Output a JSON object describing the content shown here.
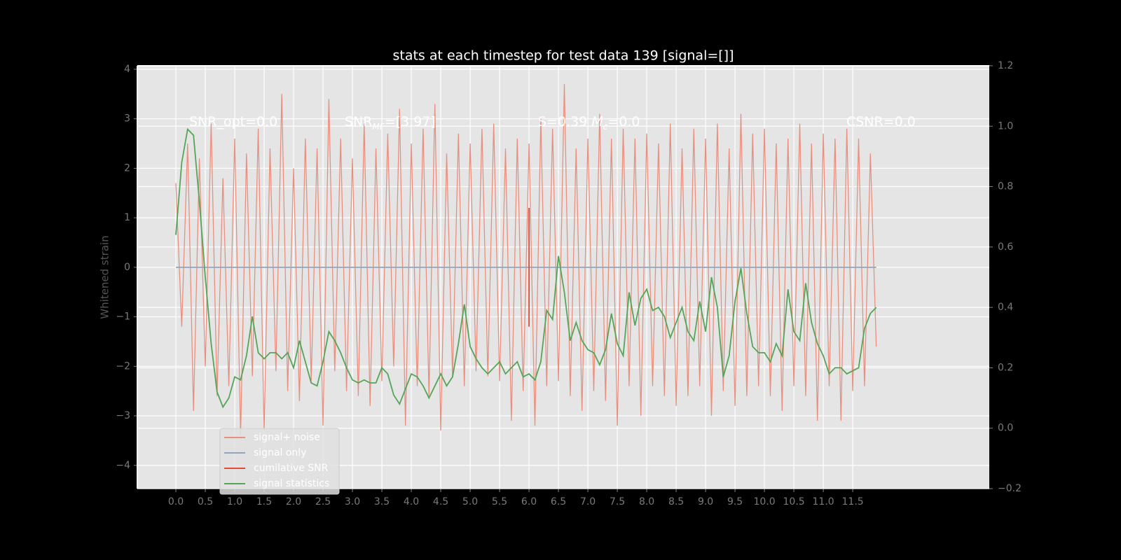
{
  "chart_data": {
    "type": "line",
    "title": "stats at each timestep for test data 139 [signal=[]]",
    "ylabel": "Whitened strain",
    "annotations": [
      [
        "SNR_opt=0.0"
      ],
      [
        "SNR",
        "MF",
        "=[3.97]"
      ],
      [
        "S=0.39   ",
        "M",
        "c",
        "=0.0"
      ],
      [
        "CSNR=0.0"
      ]
    ],
    "x": [
      0.0,
      0.1,
      0.2,
      0.3,
      0.4,
      0.5,
      0.6,
      0.7,
      0.8,
      0.9,
      1.0,
      1.1,
      1.2,
      1.3,
      1.4,
      1.5,
      1.6,
      1.7,
      1.8,
      1.9,
      2.0,
      2.1,
      2.2,
      2.3,
      2.4,
      2.5,
      2.6,
      2.7,
      2.8,
      2.9,
      3.0,
      3.1,
      3.2,
      3.3,
      3.4,
      3.5,
      3.6,
      3.7,
      3.8,
      3.9,
      4.0,
      4.1,
      4.2,
      4.3,
      4.4,
      4.5,
      4.6,
      4.7,
      4.8,
      4.9,
      5.0,
      5.1,
      5.2,
      5.3,
      5.4,
      5.5,
      5.6,
      5.7,
      5.8,
      5.9,
      6.0,
      6.1,
      6.2,
      6.3,
      6.4,
      6.5,
      6.6,
      6.7,
      6.8,
      6.9,
      7.0,
      7.1,
      7.2,
      7.3,
      7.4,
      7.5,
      7.6,
      7.7,
      7.8,
      7.9,
      8.0,
      8.1,
      8.2,
      8.3,
      8.4,
      8.5,
      8.6,
      8.7,
      8.8,
      8.9,
      9.0,
      9.1,
      9.2,
      9.3,
      9.4,
      9.5,
      9.6,
      9.7,
      9.8,
      9.9,
      10.0,
      10.1,
      10.2,
      10.3,
      10.4,
      10.5,
      10.6,
      10.7,
      10.8,
      10.9,
      11.0,
      11.1,
      11.2,
      11.3,
      11.4,
      11.5,
      11.6,
      11.7,
      11.8,
      11.9
    ],
    "series": [
      {
        "name": "signal+ noise",
        "color": "#e8907f",
        "values": [
          1.7,
          -1.2,
          2.5,
          -2.9,
          2.2,
          -2.0,
          2.9,
          -2.6,
          1.8,
          -2.4,
          2.6,
          -3.4,
          2.3,
          -2.2,
          2.8,
          -3.3,
          2.4,
          -2.1,
          3.5,
          -2.5,
          2.0,
          -2.7,
          2.6,
          -2.3,
          2.4,
          -3.2,
          3.4,
          -2.1,
          2.6,
          -2.5,
          2.2,
          -2.6,
          2.9,
          -2.8,
          2.4,
          -2.3,
          2.7,
          -2.0,
          3.2,
          -3.2,
          2.5,
          -2.4,
          2.8,
          -2.6,
          3.3,
          -3.3,
          2.3,
          -2.2,
          2.7,
          -2.4,
          2.5,
          -2.1,
          2.8,
          -2.2,
          2.9,
          -2.3,
          2.4,
          -3.1,
          2.6,
          -2.5,
          2.5,
          -3.2,
          3.0,
          -2.4,
          2.8,
          -2.3,
          3.7,
          -2.6,
          2.4,
          -2.9,
          2.6,
          -2.5,
          3.1,
          -2.7,
          2.6,
          -3.2,
          2.8,
          -2.4,
          2.6,
          -3.0,
          2.7,
          -2.4,
          2.5,
          -2.6,
          2.9,
          -2.8,
          2.4,
          -2.6,
          2.8,
          -2.4,
          2.6,
          -3.0,
          2.9,
          -2.5,
          2.4,
          -2.8,
          3.1,
          -2.6,
          2.7,
          -2.4,
          2.8,
          -2.6,
          2.5,
          -2.9,
          2.6,
          -2.4,
          2.9,
          -2.6,
          2.5,
          -3.1,
          2.7,
          -2.4,
          2.6,
          -3.1,
          2.8,
          -2.5,
          2.6,
          -2.4,
          2.3,
          -1.6
        ]
      },
      {
        "name": "signal only",
        "color": "#8fa6bd",
        "values": [
          0,
          0,
          0,
          0,
          0,
          0,
          0,
          0,
          0,
          0,
          0,
          0,
          0,
          0,
          0,
          0,
          0,
          0,
          0,
          0,
          0,
          0,
          0,
          0,
          0,
          0,
          0,
          0,
          0,
          0,
          0,
          0,
          0,
          0,
          0,
          0,
          0,
          0,
          0,
          0,
          0,
          0,
          0,
          0,
          0,
          0,
          0,
          0,
          0,
          0,
          0,
          0,
          0,
          0,
          0,
          0,
          0,
          0,
          0,
          0,
          0,
          0,
          0,
          0,
          0,
          0,
          0,
          0,
          0,
          0,
          0,
          0,
          0,
          0,
          0,
          0,
          0,
          0,
          0,
          0,
          0,
          0,
          0,
          0,
          0,
          0,
          0,
          0,
          0,
          0,
          0,
          0,
          0,
          0,
          0,
          0,
          0,
          0,
          0,
          0,
          0,
          0,
          0,
          0,
          0,
          0,
          0,
          0,
          0,
          0,
          0,
          0,
          0,
          0,
          0,
          0,
          0,
          0,
          0,
          0
        ]
      },
      {
        "name": "cumilative SNR",
        "color": "#e24a33",
        "x": [
          6.0,
          6.0
        ],
        "values": [
          1.2,
          -1.2
        ]
      },
      {
        "name": "signal statistics",
        "color": "#55a558",
        "axis": "y2",
        "values": [
          0.64,
          0.88,
          0.99,
          0.97,
          0.75,
          0.5,
          0.28,
          0.12,
          0.07,
          0.1,
          0.17,
          0.16,
          0.24,
          0.37,
          0.25,
          0.23,
          0.25,
          0.25,
          0.23,
          0.25,
          0.2,
          0.29,
          0.22,
          0.15,
          0.14,
          0.22,
          0.32,
          0.29,
          0.25,
          0.2,
          0.16,
          0.15,
          0.16,
          0.15,
          0.15,
          0.2,
          0.18,
          0.11,
          0.08,
          0.13,
          0.18,
          0.17,
          0.14,
          0.1,
          0.14,
          0.18,
          0.14,
          0.17,
          0.28,
          0.41,
          0.27,
          0.23,
          0.2,
          0.18,
          0.2,
          0.22,
          0.18,
          0.2,
          0.22,
          0.17,
          0.18,
          0.16,
          0.22,
          0.39,
          0.36,
          0.57,
          0.45,
          0.29,
          0.35,
          0.29,
          0.26,
          0.25,
          0.21,
          0.26,
          0.38,
          0.28,
          0.24,
          0.45,
          0.34,
          0.43,
          0.46,
          0.39,
          0.4,
          0.37,
          0.3,
          0.35,
          0.4,
          0.32,
          0.29,
          0.42,
          0.32,
          0.5,
          0.4,
          0.17,
          0.24,
          0.42,
          0.53,
          0.38,
          0.27,
          0.25,
          0.25,
          0.22,
          0.28,
          0.24,
          0.46,
          0.32,
          0.29,
          0.48,
          0.35,
          0.28,
          0.24,
          0.18,
          0.2,
          0.2,
          0.18,
          0.19,
          0.2,
          0.33,
          0.38,
          0.4
        ]
      }
    ],
    "xlim": [
      -0.655,
      13.82
    ],
    "xticks": [
      {
        "value": 0,
        "label": "0.0"
      },
      {
        "value": 0.5,
        "label": "0.5"
      },
      {
        "value": 1,
        "label": "1.0"
      },
      {
        "value": 1.5,
        "label": "1.5"
      },
      {
        "value": 2,
        "label": "2.0"
      },
      {
        "value": 2.5,
        "label": "2.5"
      },
      {
        "value": 3,
        "label": "3.0"
      },
      {
        "value": 3.5,
        "label": "3.5"
      },
      {
        "value": 4,
        "label": "4.0"
      },
      {
        "value": 4.5,
        "label": "4.5"
      },
      {
        "value": 5,
        "label": "5.0"
      },
      {
        "value": 5.5,
        "label": "5.5"
      },
      {
        "value": 6,
        "label": "6.0"
      },
      {
        "value": 6.5,
        "label": "6.5"
      },
      {
        "value": 7,
        "label": "7.0"
      },
      {
        "value": 7.5,
        "label": "7.5"
      },
      {
        "value": 8,
        "label": "8.0"
      },
      {
        "value": 8.5,
        "label": "8.5"
      },
      {
        "value": 9,
        "label": "9.0"
      },
      {
        "value": 9.5,
        "label": "9.5"
      },
      {
        "value": 10,
        "label": "10.0"
      },
      {
        "value": 10.5,
        "label": "10.5"
      },
      {
        "value": 11,
        "label": "11.0"
      },
      {
        "value": 11.5,
        "label": "11.5"
      }
    ],
    "ylim": [
      -4.47,
      4.07
    ],
    "yticks": [
      {
        "value": -4,
        "label": "−4"
      },
      {
        "value": -3,
        "label": "−3"
      },
      {
        "value": -2,
        "label": "−2"
      },
      {
        "value": -1,
        "label": "−1"
      },
      0,
      1,
      2,
      3,
      4
    ],
    "y2lim": [
      -0.2,
      1.2
    ],
    "y2ticks": [
      {
        "value": -0.2,
        "label": "−0.2"
      },
      {
        "value": 0,
        "label": "0.0"
      },
      0.2,
      0.4,
      0.6,
      0.8,
      {
        "value": 1,
        "label": "1.0"
      },
      {
        "value": 1.2,
        "label": "1.2"
      }
    ],
    "grid": true,
    "legend": "lower left"
  }
}
